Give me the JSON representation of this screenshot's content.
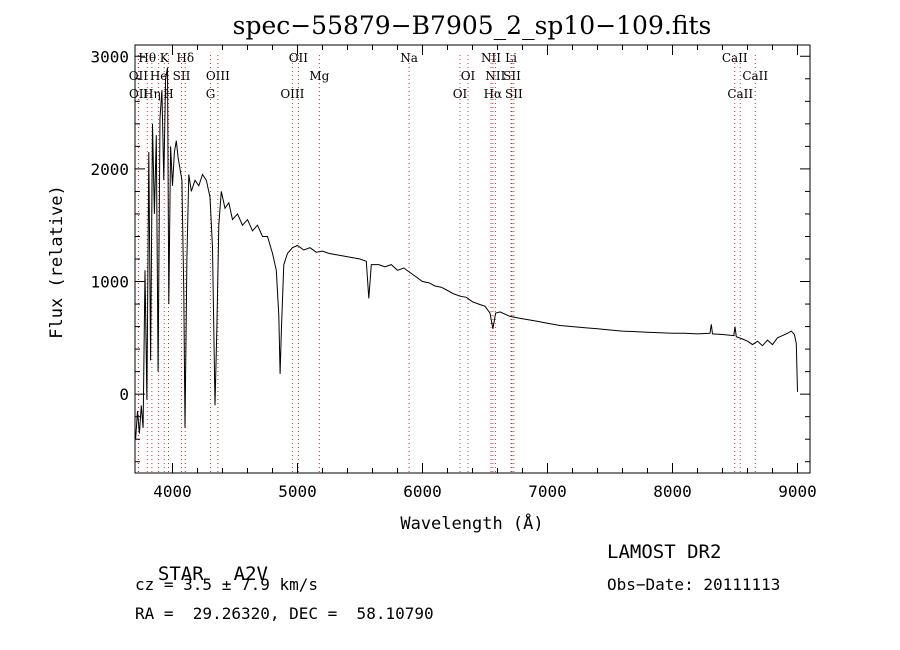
{
  "chart_data": {
    "type": "line",
    "title": "spec−55879−B7905_2_sp10−109.fits",
    "xlabel": "Wavelength (Å)",
    "ylabel": "Flux (relative)",
    "xlim": [
      3700,
      9100
    ],
    "ylim": [
      -700,
      3100
    ],
    "x_ticks": [
      4000,
      5000,
      6000,
      7000,
      8000,
      9000
    ],
    "y_ticks": [
      0,
      1000,
      2000,
      3000
    ],
    "grid": false,
    "series": [
      {
        "line_color": "#000000",
        "points": [
          [
            3705,
            -400
          ],
          [
            3720,
            -150
          ],
          [
            3735,
            -350
          ],
          [
            3750,
            -100
          ],
          [
            3765,
            -300
          ],
          [
            3780,
            1100
          ],
          [
            3795,
            -50
          ],
          [
            3810,
            2150
          ],
          [
            3825,
            300
          ],
          [
            3840,
            2400
          ],
          [
            3855,
            1600
          ],
          [
            3870,
            2300
          ],
          [
            3885,
            200
          ],
          [
            3900,
            2450
          ],
          [
            3915,
            2700
          ],
          [
            3930,
            1900
          ],
          [
            3945,
            2800
          ],
          [
            3960,
            2900
          ],
          [
            3970,
            800
          ],
          [
            3985,
            2200
          ],
          [
            4000,
            1850
          ],
          [
            4015,
            2150
          ],
          [
            4030,
            2250
          ],
          [
            4045,
            2100
          ],
          [
            4060,
            2000
          ],
          [
            4075,
            1900
          ],
          [
            4090,
            900
          ],
          [
            4100,
            -300
          ],
          [
            4115,
            1200
          ],
          [
            4130,
            1950
          ],
          [
            4150,
            1800
          ],
          [
            4180,
            1900
          ],
          [
            4210,
            1850
          ],
          [
            4240,
            1950
          ],
          [
            4270,
            1900
          ],
          [
            4300,
            1750
          ],
          [
            4320,
            1300
          ],
          [
            4340,
            -100
          ],
          [
            4355,
            600
          ],
          [
            4370,
            1500
          ],
          [
            4390,
            1800
          ],
          [
            4420,
            1650
          ],
          [
            4450,
            1700
          ],
          [
            4480,
            1550
          ],
          [
            4520,
            1600
          ],
          [
            4560,
            1500
          ],
          [
            4600,
            1550
          ],
          [
            4640,
            1450
          ],
          [
            4680,
            1500
          ],
          [
            4720,
            1400
          ],
          [
            4760,
            1400
          ],
          [
            4800,
            1250
          ],
          [
            4830,
            1100
          ],
          [
            4850,
            700
          ],
          [
            4861,
            180
          ],
          [
            4872,
            600
          ],
          [
            4890,
            1150
          ],
          [
            4920,
            1250
          ],
          [
            4960,
            1300
          ],
          [
            5000,
            1320
          ],
          [
            5050,
            1280
          ],
          [
            5100,
            1300
          ],
          [
            5150,
            1260
          ],
          [
            5200,
            1270
          ],
          [
            5250,
            1250
          ],
          [
            5300,
            1240
          ],
          [
            5350,
            1230
          ],
          [
            5400,
            1220
          ],
          [
            5450,
            1210
          ],
          [
            5500,
            1200
          ],
          [
            5550,
            1180
          ],
          [
            5570,
            850
          ],
          [
            5590,
            1150
          ],
          [
            5650,
            1150
          ],
          [
            5700,
            1130
          ],
          [
            5750,
            1150
          ],
          [
            5800,
            1100
          ],
          [
            5850,
            1120
          ],
          [
            5900,
            1080
          ],
          [
            5950,
            1040
          ],
          [
            6000,
            1000
          ],
          [
            6050,
            990
          ],
          [
            6100,
            960
          ],
          [
            6150,
            950
          ],
          [
            6200,
            920
          ],
          [
            6250,
            890
          ],
          [
            6300,
            870
          ],
          [
            6350,
            860
          ],
          [
            6400,
            820
          ],
          [
            6450,
            800
          ],
          [
            6500,
            780
          ],
          [
            6540,
            720
          ],
          [
            6563,
            580
          ],
          [
            6585,
            720
          ],
          [
            6620,
            730
          ],
          [
            6700,
            690
          ],
          [
            6800,
            670
          ],
          [
            6900,
            650
          ],
          [
            7000,
            630
          ],
          [
            7100,
            610
          ],
          [
            7200,
            600
          ],
          [
            7300,
            590
          ],
          [
            7400,
            580
          ],
          [
            7500,
            570
          ],
          [
            7600,
            560
          ],
          [
            7700,
            555
          ],
          [
            7800,
            550
          ],
          [
            7900,
            545
          ],
          [
            8000,
            540
          ],
          [
            8100,
            540
          ],
          [
            8200,
            535
          ],
          [
            8300,
            540
          ],
          [
            8310,
            620
          ],
          [
            8320,
            535
          ],
          [
            8400,
            530
          ],
          [
            8490,
            520
          ],
          [
            8500,
            600
          ],
          [
            8510,
            510
          ],
          [
            8560,
            490
          ],
          [
            8600,
            470
          ],
          [
            8640,
            440
          ],
          [
            8680,
            470
          ],
          [
            8720,
            430
          ],
          [
            8760,
            480
          ],
          [
            8800,
            440
          ],
          [
            8840,
            500
          ],
          [
            8880,
            520
          ],
          [
            8920,
            540
          ],
          [
            8950,
            560
          ],
          [
            8975,
            530
          ],
          [
            8990,
            450
          ],
          [
            9000,
            20
          ]
        ]
      }
    ],
    "line_markers": [
      {
        "label": "Hθ",
        "x": 3798,
        "row": 0
      },
      {
        "label": "K",
        "x": 3934,
        "row": 0
      },
      {
        "label": "Hδ",
        "x": 4102,
        "row": 0
      },
      {
        "label": "OII",
        "x": 5007,
        "row": 0
      },
      {
        "label": "Na",
        "x": 5893,
        "row": 0
      },
      {
        "label": "NII",
        "x": 6548,
        "row": 0
      },
      {
        "label": "Li",
        "x": 6708,
        "row": 0
      },
      {
        "label": "CaII",
        "x": 8498,
        "row": 0
      },
      {
        "label": "OII",
        "x": 3727,
        "row": 1
      },
      {
        "label": "He",
        "x": 3889,
        "row": 1
      },
      {
        "label": "SII",
        "x": 4072,
        "row": 1
      },
      {
        "label": "OIII",
        "x": 4363,
        "row": 1
      },
      {
        "label": "Mg",
        "x": 5175,
        "row": 1
      },
      {
        "label": "OI",
        "x": 6364,
        "row": 1
      },
      {
        "label": "NII",
        "x": 6583,
        "row": 1
      },
      {
        "label": "SII",
        "x": 6716,
        "row": 1
      },
      {
        "label": "CaII",
        "x": 8662,
        "row": 1
      },
      {
        "label": "OII",
        "x": 3729,
        "row": 2
      },
      {
        "label": "Hη",
        "x": 3835,
        "row": 2
      },
      {
        "label": "H",
        "x": 3968,
        "row": 2
      },
      {
        "label": "G",
        "x": 4304,
        "row": 2
      },
      {
        "label": "OIII",
        "x": 4959,
        "row": 2
      },
      {
        "label": "OI",
        "x": 6300,
        "row": 2
      },
      {
        "label": "Hα",
        "x": 6563,
        "row": 2
      },
      {
        "label": "SII",
        "x": 6731,
        "row": 2
      },
      {
        "label": "CaII",
        "x": 8542,
        "row": 2
      }
    ],
    "marker_color": "#cc3333"
  },
  "info": {
    "class_label": "STAR",
    "subclass": "A2V",
    "redshift": "cz = 3.5 ± 7.9 km/s",
    "coords": "RA =  29.26320, DEC =  58.10790",
    "survey": "LAMOST DR2",
    "obs_date": "Obs−Date: 20111113"
  }
}
